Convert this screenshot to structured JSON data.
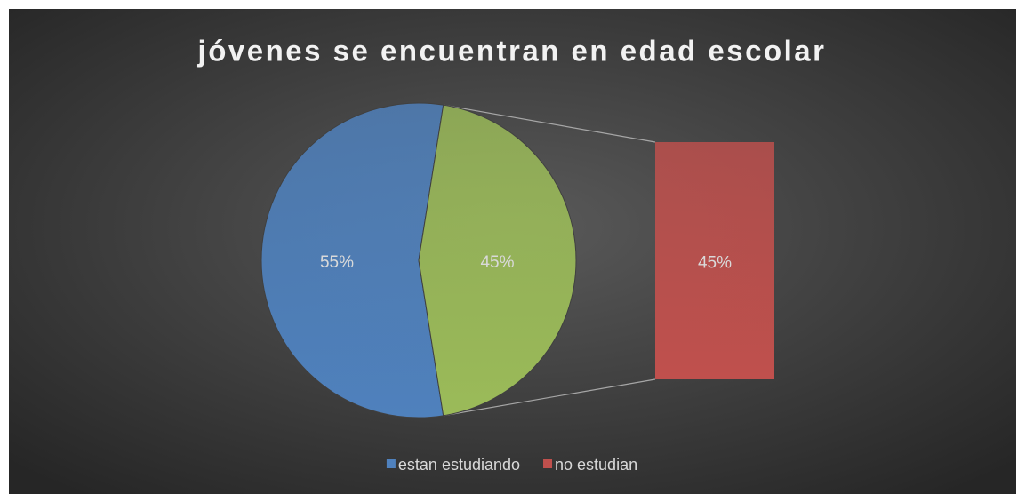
{
  "chart_data": {
    "type": "bar-of-pie",
    "title": "jóvenes se encuentran en edad escolar",
    "categories": [
      "estan estudiando",
      "no estudian"
    ],
    "values": [
      55,
      45
    ],
    "value_labels": [
      "55%",
      "45%"
    ],
    "colors": [
      "#4f81bd",
      "#c0504d"
    ],
    "other_color": "#9bbb59",
    "legend": "bottom"
  }
}
